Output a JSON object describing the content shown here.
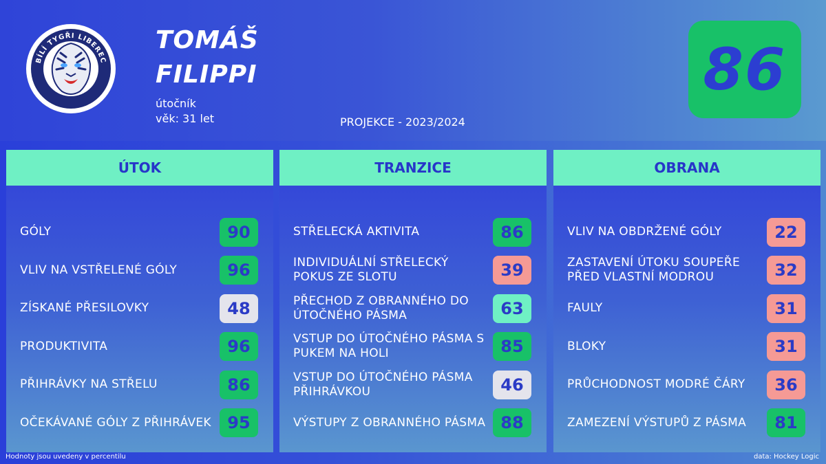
{
  "player": {
    "first_name": "TOMÁŠ",
    "last_name": "FILIPPI",
    "position": "útočník",
    "age": "věk: 31 let",
    "overall": "86"
  },
  "team": {
    "logo_text": "BÍLÍ TYGŘI LIBEREC"
  },
  "season_label": "PROJEKCE - 2023/2024",
  "colors": {
    "high": "#18c168",
    "mid_high": "#6ff0c4",
    "neutral": "#e4e4ec",
    "low": "#f59a95",
    "header": "#6ff0c4",
    "score_text": "#2b3bc6"
  },
  "sections": [
    {
      "title": "ÚTOK",
      "items": [
        {
          "label": "GÓLY",
          "value": "90",
          "tier": "high"
        },
        {
          "label": "VLIV NA VSTŘELENÉ GÓLY",
          "value": "96",
          "tier": "high"
        },
        {
          "label": "ZÍSKANÉ PŘESILOVKY",
          "value": "48",
          "tier": "neutral"
        },
        {
          "label": "PRODUKTIVITA",
          "value": "96",
          "tier": "high"
        },
        {
          "label": "PŘIHRÁVKY NA STŘELU",
          "value": "86",
          "tier": "high"
        },
        {
          "label": "OČEKÁVANÉ GÓLY Z PŘIHRÁVEK",
          "value": "95",
          "tier": "high"
        }
      ]
    },
    {
      "title": "TRANZICE",
      "items": [
        {
          "label": "STŘELECKÁ AKTIVITA",
          "value": "86",
          "tier": "high"
        },
        {
          "label": "INDIVIDUÁLNÍ STŘELECKÝ POKUS ZE SLOTU",
          "value": "39",
          "tier": "low"
        },
        {
          "label": "PŘECHOD Z OBRANNÉHO DO ÚTOČNÉHO PÁSMA",
          "value": "63",
          "tier": "mid_high"
        },
        {
          "label": "VSTUP DO ÚTOČNÉHO PÁSMA S PUKEM NA HOLI",
          "value": "85",
          "tier": "high"
        },
        {
          "label": "VSTUP DO ÚTOČNÉHO PÁSMA PŘIHRÁVKOU",
          "value": "46",
          "tier": "neutral"
        },
        {
          "label": "VÝSTUPY Z OBRANNÉHO PÁSMA",
          "value": "88",
          "tier": "high"
        }
      ]
    },
    {
      "title": "OBRANA",
      "items": [
        {
          "label": "VLIV NA OBDRŽENÉ GÓLY",
          "value": "22",
          "tier": "low"
        },
        {
          "label": "ZASTAVENÍ ÚTOKU SOUPEŘE PŘED VLASTNÍ MODROU",
          "value": "32",
          "tier": "low"
        },
        {
          "label": "FAULY",
          "value": "31",
          "tier": "low"
        },
        {
          "label": "BLOKY",
          "value": "31",
          "tier": "low"
        },
        {
          "label": "PRŮCHODNOST MODRÉ ČÁRY",
          "value": "36",
          "tier": "low"
        },
        {
          "label": "ZAMEZENÍ VÝSTUPŮ Z PÁSMA",
          "value": "81",
          "tier": "high"
        }
      ]
    }
  ],
  "footer": {
    "note": "Hodnoty jsou uvedeny v percentilu",
    "source": "data: Hockey Logic"
  }
}
